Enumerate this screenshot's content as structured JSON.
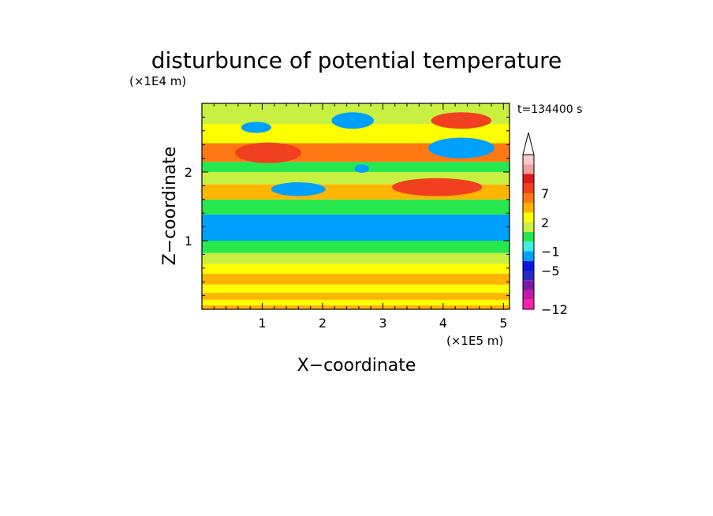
{
  "chart_data": {
    "type": "heatmap",
    "title": "disturbunce of potential temperature",
    "time_label": "t=134400 s",
    "xlabel": "X−coordinate",
    "ylabel": "Z−coordinate",
    "x_scale_label": "(×1E5 m)",
    "y_scale_label": "(×1E4 m)",
    "xlim": [
      0,
      5.1
    ],
    "ylim": [
      0,
      3.0
    ],
    "x_ticks": [
      1,
      2,
      3,
      4,
      5
    ],
    "y_ticks": [
      1,
      2
    ],
    "colorbar": {
      "levels": [
        -12,
        -11,
        -9,
        -7,
        -5,
        -3,
        -1,
        0,
        1,
        2,
        3,
        5,
        7,
        9,
        11
      ],
      "colors": [
        "#ff1fb0",
        "#c41aa8",
        "#7a1aa8",
        "#2828c8",
        "#0a14e0",
        "#00a0ff",
        "#3cf0e0",
        "#28e850",
        "#c8f040",
        "#ffff00",
        "#ffb400",
        "#ff7814",
        "#f04020",
        "#e01818",
        "#f0a0a0",
        "#ffc8c8"
      ],
      "tick_labels": [
        "−12",
        "−5",
        "−1",
        "2",
        "7"
      ],
      "extend": "max"
    },
    "bands": [
      {
        "z": [
          0.0,
          0.06
        ],
        "value": 2
      },
      {
        "z": [
          0.06,
          0.14
        ],
        "value": 1
      },
      {
        "z": [
          0.14,
          0.24
        ],
        "value": 2
      },
      {
        "z": [
          0.24,
          0.36
        ],
        "value": 1
      },
      {
        "z": [
          0.36,
          0.52
        ],
        "value": 2
      },
      {
        "z": [
          0.52,
          0.66
        ],
        "value": 1
      },
      {
        "z": [
          0.66,
          0.82
        ],
        "value": 0
      },
      {
        "z": [
          0.82,
          1.0
        ],
        "value": -1
      },
      {
        "z": [
          1.0,
          1.38
        ],
        "value": -4
      },
      {
        "z": [
          1.38,
          1.6
        ],
        "value": -1
      },
      {
        "z": [
          1.6,
          1.82
        ],
        "value": 2
      },
      {
        "z": [
          1.82,
          2.0
        ],
        "value": 0
      },
      {
        "z": [
          2.0,
          2.15
        ],
        "value": -1
      },
      {
        "z": [
          2.15,
          2.42
        ],
        "value": 3
      },
      {
        "z": [
          2.42,
          2.7
        ],
        "value": 1
      },
      {
        "z": [
          2.7,
          3.0
        ],
        "value": 0
      }
    ],
    "features": [
      {
        "cx": 0.9,
        "cz": 2.65,
        "rx": 0.25,
        "rz": 0.08,
        "value": -5
      },
      {
        "cx": 2.5,
        "cz": 2.75,
        "rx": 0.35,
        "rz": 0.12,
        "value": -5
      },
      {
        "cx": 4.3,
        "cz": 2.35,
        "rx": 0.55,
        "rz": 0.15,
        "value": -5
      },
      {
        "cx": 1.6,
        "cz": 1.75,
        "rx": 0.45,
        "rz": 0.1,
        "value": -5
      },
      {
        "cx": 2.65,
        "cz": 2.05,
        "rx": 0.12,
        "rz": 0.06,
        "value": -5
      },
      {
        "cx": 3.55,
        "cz": 1.15,
        "rx": 0.55,
        "rz": 0.13,
        "value": -5
      },
      {
        "cx": 1.1,
        "cz": 2.28,
        "rx": 0.55,
        "rz": 0.15,
        "value": 5
      },
      {
        "cx": 3.9,
        "cz": 1.78,
        "rx": 0.75,
        "rz": 0.13,
        "value": 5
      },
      {
        "cx": 4.3,
        "cz": 2.75,
        "rx": 0.5,
        "rz": 0.12,
        "value": 5
      }
    ]
  }
}
